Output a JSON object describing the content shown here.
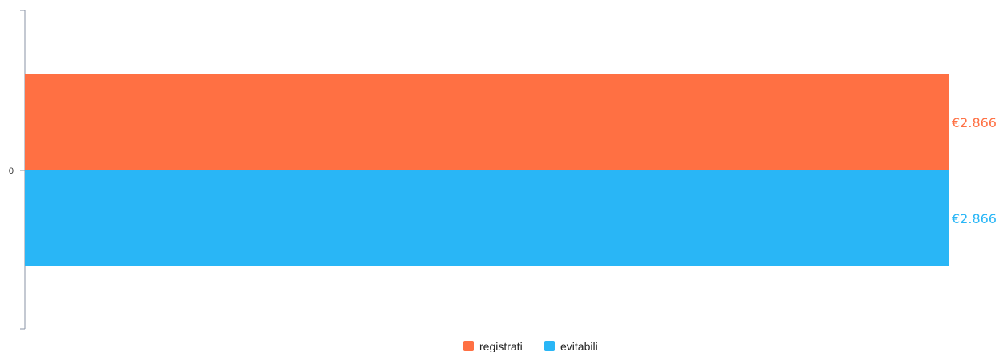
{
  "chart_data": {
    "type": "bar",
    "orientation": "horizontal",
    "categories": [
      ""
    ],
    "series": [
      {
        "name": "registrati",
        "values": [
          2866
        ],
        "color": "#ff7043",
        "data_labels": [
          "€2.866"
        ]
      },
      {
        "name": "evitabili",
        "values": [
          2866
        ],
        "color": "#29b6f6",
        "data_labels": [
          "€2.866"
        ]
      }
    ],
    "y_ticks": [
      "0"
    ],
    "xlim": [
      0,
      2866
    ],
    "grid": false,
    "legend_position": "bottom-center"
  }
}
